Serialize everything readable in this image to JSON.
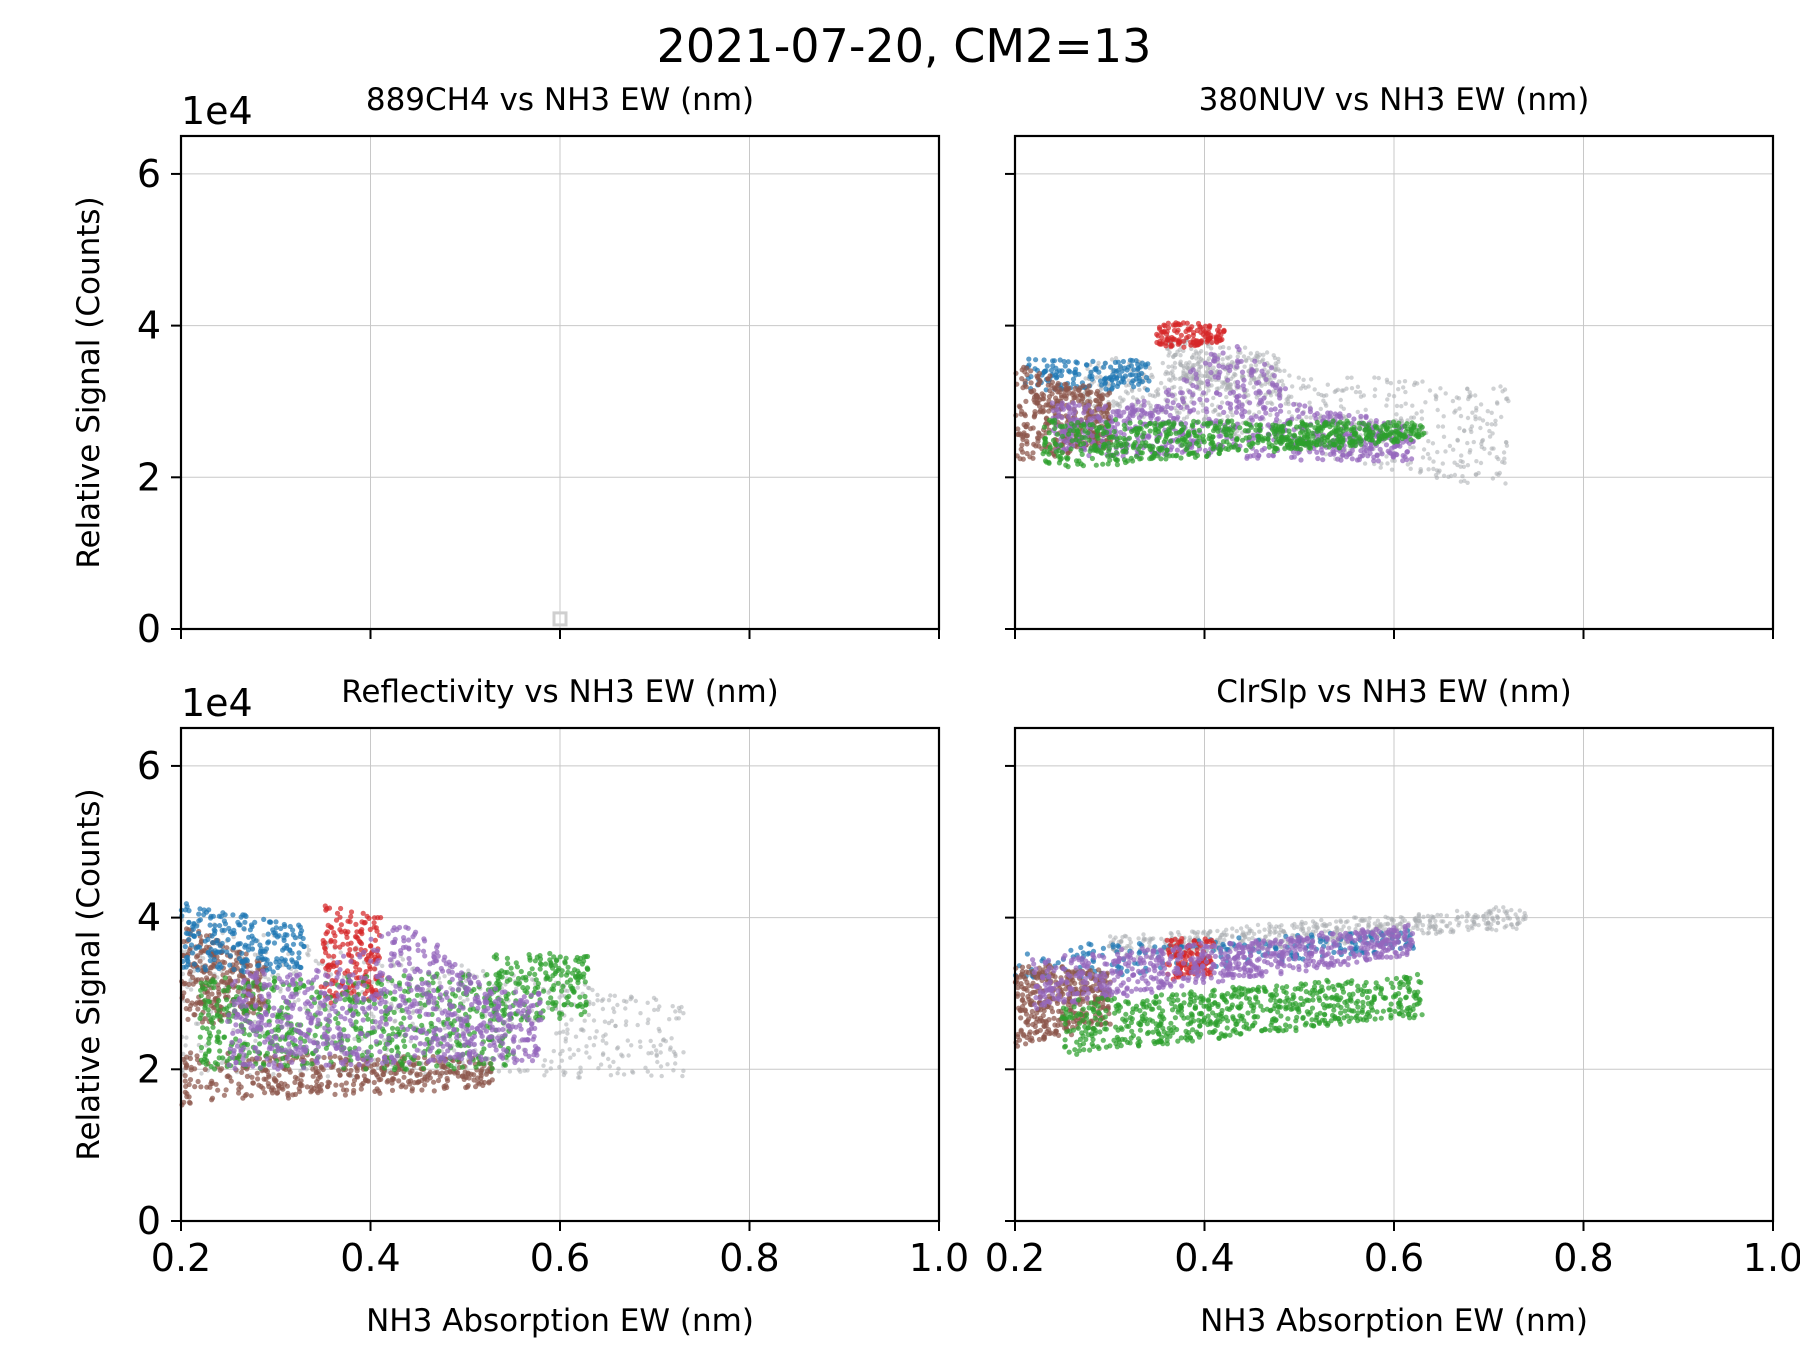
{
  "figure": {
    "suptitle": "2021-07-20, CM2=13"
  },
  "colors": {
    "blue": "#1f77b4",
    "red": "#d62728",
    "brown": "#8c564b",
    "purple": "#9467bd",
    "green": "#2ca02c",
    "gray": "#a9adb1",
    "grid": "#c8c8c8"
  },
  "chart_data": [
    {
      "type": "scatter",
      "title": "889CH4 vs NH3 EW (nm)",
      "ylabel": "Relative Signal (Counts)",
      "xlabel": "",
      "y_offset_label": "1e4",
      "xlim": [
        0.2,
        1.0
      ],
      "ylim": [
        0,
        6.5
      ],
      "xticks": [
        "",
        "",
        "",
        "",
        ""
      ],
      "yticks": [
        "0",
        "2",
        "4",
        "6"
      ],
      "grid": true,
      "markers": [
        {
          "x": 0.6,
          "y": 0.12,
          "shape": "square",
          "color": "#cfcfcf"
        }
      ],
      "clusters": []
    },
    {
      "type": "scatter",
      "title": "380NUV vs NH3 EW (nm)",
      "ylabel": "",
      "xlabel": "",
      "y_offset_label": "",
      "xlim": [
        0.2,
        1.0
      ],
      "ylim": [
        0,
        6.5
      ],
      "xticks": [
        "",
        "",
        "",
        "",
        ""
      ],
      "yticks": [
        "",
        "",
        "",
        ""
      ],
      "grid": true,
      "markers": [],
      "clusters": [
        {
          "color": "gray",
          "n": 650,
          "x": [
            0.27,
            0.72
          ],
          "y0": [
            2.9,
            3.6
          ],
          "y1": [
            1.8,
            3.2
          ]
        },
        {
          "color": "gray",
          "n": 250,
          "x": [
            0.36,
            0.48
          ],
          "y0": [
            3.3,
            3.9
          ],
          "y1": [
            3.0,
            3.6
          ]
        },
        {
          "color": "blue",
          "n": 150,
          "x": [
            0.21,
            0.34
          ],
          "y0": [
            3.15,
            3.55
          ],
          "y1": [
            3.15,
            3.55
          ]
        },
        {
          "color": "brown",
          "n": 380,
          "x": [
            0.2,
            0.3
          ],
          "y0": [
            2.2,
            3.5
          ],
          "y1": [
            2.4,
            3.1
          ]
        },
        {
          "color": "red",
          "n": 130,
          "x": [
            0.35,
            0.42
          ],
          "y0": [
            3.7,
            4.05
          ],
          "y1": [
            3.75,
            4.0
          ]
        },
        {
          "color": "purple",
          "n": 750,
          "x": [
            0.24,
            0.62
          ],
          "y0": [
            2.3,
            3.0
          ],
          "y1": [
            2.2,
            2.75
          ],
          "bump": [
            0.43,
            0.06,
            0.9
          ]
        },
        {
          "color": "green",
          "n": 700,
          "x": [
            0.23,
            0.63
          ],
          "y0": [
            2.1,
            2.75
          ],
          "y1": [
            2.5,
            2.72
          ]
        }
      ]
    },
    {
      "type": "scatter",
      "title": "Reflectivity vs NH3 EW (nm)",
      "ylabel": "Relative Signal (Counts)",
      "xlabel": "NH3 Absorption EW (nm)",
      "y_offset_label": "1e4",
      "xlim": [
        0.2,
        1.0
      ],
      "ylim": [
        0,
        6.5
      ],
      "xticks": [
        "0.2",
        "0.4",
        "0.6",
        "0.8",
        "1.0"
      ],
      "yticks": [
        "0",
        "2",
        "4",
        "6"
      ],
      "grid": true,
      "markers": [],
      "clusters": [
        {
          "color": "gray",
          "n": 650,
          "x": [
            0.2,
            0.73
          ],
          "y0": [
            1.9,
            4.0
          ],
          "y1": [
            1.9,
            2.9
          ]
        },
        {
          "color": "brown",
          "n": 420,
          "x": [
            0.2,
            0.53
          ],
          "y0": [
            1.55,
            2.2
          ],
          "y1": [
            1.75,
            2.15
          ]
        },
        {
          "color": "brown",
          "n": 280,
          "x": [
            0.2,
            0.29
          ],
          "y0": [
            2.5,
            3.95
          ],
          "y1": [
            2.8,
            3.4
          ]
        },
        {
          "color": "blue",
          "n": 220,
          "x": [
            0.2,
            0.33
          ],
          "y0": [
            3.3,
            4.2
          ],
          "y1": [
            3.3,
            3.9
          ]
        },
        {
          "color": "red",
          "n": 180,
          "x": [
            0.35,
            0.41
          ],
          "y0": [
            2.9,
            4.2
          ],
          "y1": [
            2.9,
            4.0
          ]
        },
        {
          "color": "green",
          "n": 600,
          "x": [
            0.22,
            0.55
          ],
          "y0": [
            2.0,
            3.2
          ],
          "y1": [
            2.0,
            3.3
          ]
        },
        {
          "color": "green",
          "n": 180,
          "x": [
            0.53,
            0.63
          ],
          "y0": [
            2.6,
            3.55
          ],
          "y1": [
            2.7,
            3.5
          ]
        },
        {
          "color": "purple",
          "n": 800,
          "x": [
            0.25,
            0.58
          ],
          "y0": [
            2.0,
            3.3
          ],
          "y1": [
            2.1,
            3.0
          ],
          "bump": [
            0.43,
            0.06,
            0.8
          ]
        }
      ]
    },
    {
      "type": "scatter",
      "title": "ClrSlp vs NH3 EW (nm)",
      "ylabel": "",
      "xlabel": "NH3 Absorption EW (nm)",
      "y_offset_label": "",
      "xlim": [
        0.2,
        1.0
      ],
      "ylim": [
        0,
        6.5
      ],
      "xticks": [
        "0.2",
        "0.4",
        "0.6",
        "0.8",
        "1.0"
      ],
      "yticks": [
        "",
        "",
        "",
        ""
      ],
      "grid": true,
      "markers": [],
      "clusters": [
        {
          "color": "gray",
          "n": 550,
          "x": [
            0.3,
            0.74
          ],
          "y0": [
            3.45,
            3.75
          ],
          "y1": [
            3.85,
            4.15
          ]
        },
        {
          "color": "blue",
          "n": 220,
          "x": [
            0.2,
            0.62
          ],
          "y0": [
            3.1,
            3.6
          ],
          "y1": [
            3.6,
            3.85
          ]
        },
        {
          "color": "brown",
          "n": 380,
          "x": [
            0.2,
            0.3
          ],
          "y0": [
            2.3,
            3.4
          ],
          "y1": [
            2.6,
            3.3
          ]
        },
        {
          "color": "red",
          "n": 120,
          "x": [
            0.36,
            0.41
          ],
          "y0": [
            3.2,
            3.75
          ],
          "y1": [
            3.25,
            3.7
          ]
        },
        {
          "color": "purple",
          "n": 700,
          "x": [
            0.22,
            0.62
          ],
          "y0": [
            2.8,
            3.45
          ],
          "y1": [
            3.5,
            3.9
          ]
        },
        {
          "color": "green",
          "n": 700,
          "x": [
            0.25,
            0.63
          ],
          "y0": [
            2.2,
            2.9
          ],
          "y1": [
            2.7,
            3.25
          ]
        }
      ]
    }
  ]
}
